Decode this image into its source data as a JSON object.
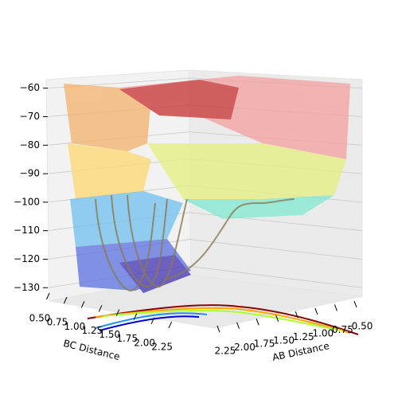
{
  "chart_data": {
    "type": "surface3d",
    "zlim": [
      -133,
      -57
    ],
    "zticks": [
      {
        "value": -60,
        "label": "−60"
      },
      {
        "value": -70,
        "label": "−70"
      },
      {
        "value": -80,
        "label": "−80"
      },
      {
        "value": -90,
        "label": "−90"
      },
      {
        "value": -100,
        "label": "−100"
      },
      {
        "value": -110,
        "label": "−110"
      },
      {
        "value": -120,
        "label": "−120"
      },
      {
        "value": -130,
        "label": "−130"
      }
    ],
    "ylabel": "BC Distance",
    "ylim": [
      0.5,
      2.3
    ],
    "yticks": [
      {
        "value": 0.5,
        "label": "0.50"
      },
      {
        "value": 0.75,
        "label": "0.75"
      },
      {
        "value": 1.0,
        "label": "1.00"
      },
      {
        "value": 1.25,
        "label": "1.25"
      },
      {
        "value": 1.5,
        "label": "1.50"
      },
      {
        "value": 1.75,
        "label": "1.75"
      },
      {
        "value": 2.0,
        "label": "2.00"
      },
      {
        "value": 2.25,
        "label": "2.25"
      }
    ],
    "xlabel": "AB Distance",
    "xlim": [
      0.5,
      2.3
    ],
    "xticks": [
      {
        "value": 0.5,
        "label": "0.50"
      },
      {
        "value": 0.75,
        "label": "0.75"
      },
      {
        "value": 1.0,
        "label": "1.00"
      },
      {
        "value": 1.25,
        "label": "1.25"
      },
      {
        "value": 1.5,
        "label": "1.50"
      },
      {
        "value": 1.75,
        "label": "1.75"
      },
      {
        "value": 2.0,
        "label": "2.00"
      },
      {
        "value": 2.25,
        "label": "2.25"
      }
    ],
    "grid": true
  }
}
